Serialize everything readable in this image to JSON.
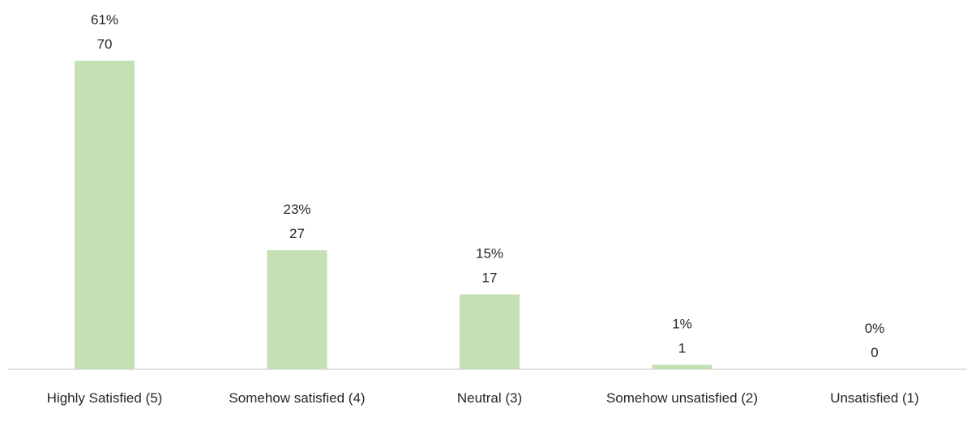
{
  "chart_data": {
    "type": "bar",
    "categories": [
      "Highly Satisfied (5)",
      "Somehow satisfied (4)",
      "Neutral (3)",
      "Somehow unsatisfied (2)",
      "Unsatisfied (1)"
    ],
    "values": [
      70,
      27,
      17,
      1,
      0
    ],
    "percent_labels": [
      "61%",
      "23%",
      "15%",
      "1%",
      "0%"
    ],
    "count_labels": [
      "70",
      "27",
      "17",
      "1",
      "0"
    ],
    "ylim": [
      0,
      70
    ],
    "grid": false,
    "legend": "none",
    "bar_color": "#c5e0b4",
    "axis_color": "#d9d9d9",
    "text_color": "#262626"
  }
}
